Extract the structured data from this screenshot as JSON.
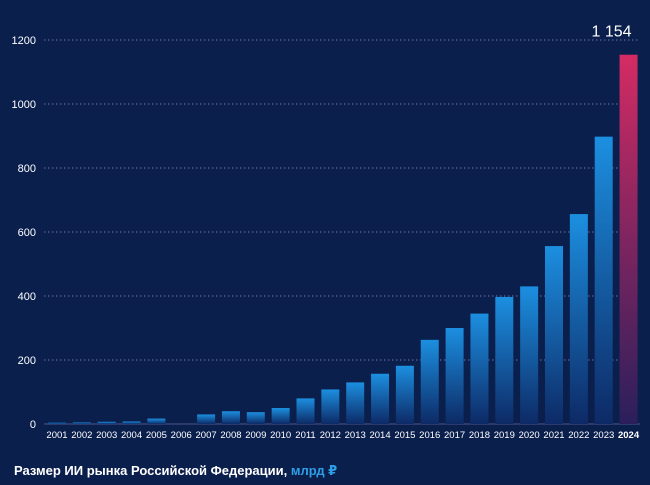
{
  "colors": {
    "background": "#0b1f4d",
    "bar_top": "#1c8fe0",
    "bar_bottom": "#0d2a66",
    "highlight_top": "#d42b63",
    "highlight_bottom": "#2a1f5c",
    "grid": "#7a78b8",
    "text": "#ffffff",
    "unit": "#2e9fe6"
  },
  "caption": {
    "title": "Размер ИИ рынка Российской Федерации,",
    "unit": "млрд ₽"
  },
  "chart_data": {
    "type": "bar",
    "title": "Размер ИИ рынка Российской Федерации, млрд ₽",
    "xlabel": "",
    "ylabel": "млрд ₽",
    "ylim": [
      0,
      1200
    ],
    "yticks": [
      0,
      200,
      400,
      600,
      800,
      1000,
      1200
    ],
    "grid": true,
    "categories": [
      "2001",
      "2002",
      "2003",
      "2004",
      "2005",
      "2006",
      "2007",
      "2008",
      "2009",
      "2010",
      "2011",
      "2012",
      "2013",
      "2014",
      "2015",
      "2016",
      "2017",
      "2018",
      "2019",
      "2020",
      "2021",
      "2022",
      "2023",
      "2024"
    ],
    "values": [
      4,
      5,
      7,
      8,
      17,
      0,
      30,
      40,
      37,
      50,
      80,
      108,
      130,
      157,
      182,
      263,
      300,
      345,
      397,
      430,
      556,
      656,
      898,
      1154
    ],
    "highlight_index": 23,
    "highlight_label": "1 154"
  }
}
